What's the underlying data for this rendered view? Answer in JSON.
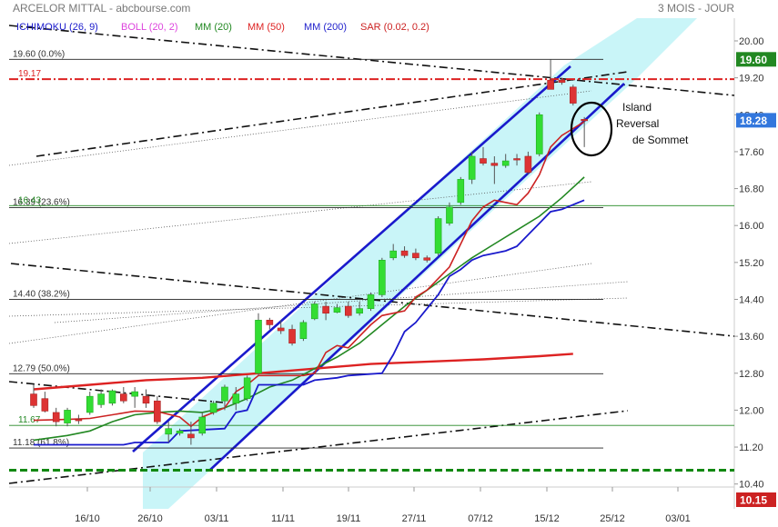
{
  "header": {
    "title": "ARCELOR MITTAL - abcbourse.com",
    "period": "3 MOIS - JOUR"
  },
  "colors": {
    "up_candle": "#33dd33",
    "down_candle": "#dd3333",
    "ichimoku": "#1a1acc",
    "bollinger": "#dd44dd",
    "ma20": "#228822",
    "ma50": "#dd2222",
    "ma200": "#2222cc",
    "sar": "#cc2222",
    "channel_fill": "#bff3f7",
    "channel_line": "#1a1acc",
    "last_price_badge": "#3377dd",
    "high_badge": "#228822",
    "low_badge": "#cc2222"
  },
  "chart_data": {
    "type": "candlestick",
    "ylim": [
      10.0,
      20.3
    ],
    "y_ticks": [
      "20.00",
      "19.20",
      "18.40",
      "17.60",
      "16.80",
      "16.00",
      "15.20",
      "14.40",
      "13.60",
      "12.80",
      "12.00",
      "11.20",
      "10.40"
    ],
    "x_ticks": [
      "16/10",
      "26/10",
      "03/11",
      "11/11",
      "19/11",
      "27/11",
      "07/12",
      "15/12",
      "25/12",
      "03/01"
    ],
    "legend": [
      {
        "label": "ICHIMOKU (26, 9)",
        "color": "#1a1acc"
      },
      {
        "label": "BOLL (20, 2)",
        "color": "#dd44dd"
      },
      {
        "label": "MM (20)",
        "color": "#228822"
      },
      {
        "label": "MM (50)",
        "color": "#dd2222"
      },
      {
        "label": "MM (200)",
        "color": "#2222cc"
      },
      {
        "label": "SAR (0.02, 0.2)",
        "color": "#cc2222"
      }
    ],
    "badges": {
      "high": "19.60",
      "last": "18.28",
      "low": "10.15"
    },
    "fib_levels": [
      {
        "label": "19.60  (0.0%)",
        "value": 19.6
      },
      {
        "label": "16.39  (23.6%)",
        "value": 16.39
      },
      {
        "label": "14.40  (38.2%)",
        "value": 14.4
      },
      {
        "label": "12.79  (50.0%)",
        "value": 12.79
      },
      {
        "label": "11.18  (61.8%)",
        "value": 11.18
      }
    ],
    "price_labels": [
      {
        "label": "19.17",
        "value": 19.17
      },
      {
        "label": "16.43",
        "value": 16.43
      },
      {
        "label": "11.67",
        "value": 11.67
      }
    ],
    "candles": [
      {
        "o": 12.35,
        "h": 12.55,
        "l": 12.05,
        "c": 12.1
      },
      {
        "o": 12.25,
        "h": 12.4,
        "l": 11.95,
        "c": 11.98
      },
      {
        "o": 11.95,
        "h": 12.05,
        "l": 11.65,
        "c": 11.75
      },
      {
        "o": 11.72,
        "h": 12.05,
        "l": 11.65,
        "c": 12.0
      },
      {
        "o": 11.8,
        "h": 11.9,
        "l": 11.7,
        "c": 11.78
      },
      {
        "o": 11.95,
        "h": 12.4,
        "l": 11.9,
        "c": 12.3
      },
      {
        "o": 12.12,
        "h": 12.45,
        "l": 12.05,
        "c": 12.35
      },
      {
        "o": 12.15,
        "h": 12.45,
        "l": 12.1,
        "c": 12.42
      },
      {
        "o": 12.35,
        "h": 12.5,
        "l": 12.15,
        "c": 12.2
      },
      {
        "o": 12.3,
        "h": 12.5,
        "l": 12.05,
        "c": 12.4
      },
      {
        "o": 12.3,
        "h": 12.45,
        "l": 12.05,
        "c": 12.15
      },
      {
        "o": 12.2,
        "h": 12.3,
        "l": 11.7,
        "c": 11.75
      },
      {
        "o": 11.48,
        "h": 11.75,
        "l": 11.3,
        "c": 11.6
      },
      {
        "o": 11.5,
        "h": 11.6,
        "l": 11.45,
        "c": 11.55
      },
      {
        "o": 11.48,
        "h": 11.75,
        "l": 11.25,
        "c": 11.4
      },
      {
        "o": 11.5,
        "h": 11.95,
        "l": 11.45,
        "c": 11.85
      },
      {
        "o": 11.95,
        "h": 12.2,
        "l": 11.9,
        "c": 12.15
      },
      {
        "o": 12.2,
        "h": 12.55,
        "l": 12.0,
        "c": 12.5
      },
      {
        "o": 12.15,
        "h": 12.5,
        "l": 12.0,
        "c": 12.35
      },
      {
        "o": 12.25,
        "h": 12.75,
        "l": 12.2,
        "c": 12.7
      },
      {
        "o": 12.8,
        "h": 14.1,
        "l": 12.75,
        "c": 13.95
      },
      {
        "o": 13.95,
        "h": 14.0,
        "l": 13.75,
        "c": 13.85
      },
      {
        "o": 13.78,
        "h": 13.95,
        "l": 13.65,
        "c": 13.72
      },
      {
        "o": 13.75,
        "h": 13.85,
        "l": 13.4,
        "c": 13.45
      },
      {
        "o": 13.55,
        "h": 13.95,
        "l": 13.5,
        "c": 13.9
      },
      {
        "o": 13.98,
        "h": 14.35,
        "l": 13.95,
        "c": 14.3
      },
      {
        "o": 14.25,
        "h": 14.35,
        "l": 13.95,
        "c": 14.1
      },
      {
        "o": 14.12,
        "h": 14.3,
        "l": 14.1,
        "c": 14.22
      },
      {
        "o": 14.25,
        "h": 14.35,
        "l": 14.0,
        "c": 14.05
      },
      {
        "o": 14.1,
        "h": 14.35,
        "l": 14.05,
        "c": 14.2
      },
      {
        "o": 14.2,
        "h": 14.55,
        "l": 14.15,
        "c": 14.5
      },
      {
        "o": 14.5,
        "h": 15.3,
        "l": 14.45,
        "c": 15.25
      },
      {
        "o": 15.3,
        "h": 15.6,
        "l": 15.25,
        "c": 15.45
      },
      {
        "o": 15.45,
        "h": 15.55,
        "l": 15.3,
        "c": 15.35
      },
      {
        "o": 15.4,
        "h": 15.5,
        "l": 15.25,
        "c": 15.3
      },
      {
        "o": 15.3,
        "h": 15.35,
        "l": 15.2,
        "c": 15.25
      },
      {
        "o": 15.4,
        "h": 16.2,
        "l": 15.35,
        "c": 16.15
      },
      {
        "o": 16.05,
        "h": 16.5,
        "l": 16.0,
        "c": 16.4
      },
      {
        "o": 16.5,
        "h": 17.05,
        "l": 16.45,
        "c": 17.0
      },
      {
        "o": 17.0,
        "h": 17.6,
        "l": 16.9,
        "c": 17.5
      },
      {
        "o": 17.45,
        "h": 17.7,
        "l": 17.3,
        "c": 17.35
      },
      {
        "o": 17.35,
        "h": 17.5,
        "l": 16.9,
        "c": 17.3
      },
      {
        "o": 17.3,
        "h": 17.55,
        "l": 17.25,
        "c": 17.4
      },
      {
        "o": 17.45,
        "h": 17.55,
        "l": 17.3,
        "c": 17.42
      },
      {
        "o": 17.5,
        "h": 17.6,
        "l": 17.1,
        "c": 17.15
      },
      {
        "o": 17.55,
        "h": 18.45,
        "l": 17.5,
        "c": 18.4
      },
      {
        "o": 19.15,
        "h": 19.6,
        "l": 18.95,
        "c": 18.95
      },
      {
        "o": 19.15,
        "h": 19.2,
        "l": 19.05,
        "c": 19.1
      },
      {
        "o": 19.0,
        "h": 19.05,
        "l": 18.6,
        "c": 18.65
      },
      {
        "o": 18.3,
        "h": 18.35,
        "l": 17.7,
        "c": 18.28
      }
    ],
    "ichimoku_line": [
      [
        0,
        11.25
      ],
      [
        8,
        11.25
      ],
      [
        9,
        11.3
      ],
      [
        12,
        11.3
      ],
      [
        13,
        11.55
      ],
      [
        17,
        11.6
      ],
      [
        18,
        11.95
      ],
      [
        19,
        12.0
      ],
      [
        20,
        12.55
      ],
      [
        24,
        12.55
      ],
      [
        25,
        12.65
      ],
      [
        27,
        12.7
      ],
      [
        28,
        12.75
      ],
      [
        31,
        12.8
      ],
      [
        32,
        13.2
      ],
      [
        33,
        13.7
      ],
      [
        34,
        13.9
      ],
      [
        35,
        14.2
      ],
      [
        36,
        14.5
      ],
      [
        37,
        14.9
      ],
      [
        38,
        15.05
      ],
      [
        39,
        15.25
      ],
      [
        40,
        15.35
      ],
      [
        41,
        15.4
      ],
      [
        42,
        15.45
      ],
      [
        43,
        15.55
      ],
      [
        44,
        15.8
      ],
      [
        45,
        16.05
      ],
      [
        46,
        16.3
      ],
      [
        47,
        16.35
      ],
      [
        48,
        16.45
      ],
      [
        49,
        16.55
      ]
    ],
    "ma20_line": [
      [
        0,
        11.35
      ],
      [
        3,
        11.45
      ],
      [
        5,
        11.55
      ],
      [
        7,
        11.75
      ],
      [
        9,
        11.9
      ],
      [
        11,
        11.95
      ],
      [
        13,
        11.98
      ],
      [
        15,
        11.95
      ],
      [
        17,
        12.05
      ],
      [
        19,
        12.25
      ],
      [
        21,
        12.5
      ],
      [
        23,
        12.65
      ],
      [
        25,
        12.9
      ],
      [
        27,
        13.15
      ],
      [
        29,
        13.45
      ],
      [
        31,
        13.85
      ],
      [
        33,
        14.25
      ],
      [
        35,
        14.6
      ],
      [
        37,
        14.95
      ],
      [
        39,
        15.3
      ],
      [
        41,
        15.6
      ],
      [
        43,
        15.9
      ],
      [
        45,
        16.2
      ],
      [
        47,
        16.6
      ],
      [
        49,
        17.05
      ]
    ],
    "ma50_line": [
      [
        0,
        12.45
      ],
      [
        5,
        12.55
      ],
      [
        10,
        12.65
      ],
      [
        15,
        12.7
      ],
      [
        20,
        12.8
      ],
      [
        25,
        12.9
      ],
      [
        30,
        13.0
      ],
      [
        35,
        13.05
      ],
      [
        40,
        13.1
      ],
      [
        45,
        13.17
      ],
      [
        48,
        13.22
      ]
    ],
    "sar_line": [
      [
        0,
        11.78
      ],
      [
        3,
        11.8
      ],
      [
        5,
        11.82
      ],
      [
        7,
        11.9
      ],
      [
        9,
        11.98
      ],
      [
        11,
        11.97
      ],
      [
        13,
        11.85
      ],
      [
        14,
        11.65
      ],
      [
        15,
        11.85
      ],
      [
        17,
        12.05
      ],
      [
        18,
        12.4
      ],
      [
        19,
        12.55
      ],
      [
        20,
        12.75
      ],
      [
        22,
        12.75
      ],
      [
        24,
        12.75
      ],
      [
        25,
        12.8
      ],
      [
        26,
        13.25
      ],
      [
        27,
        13.4
      ],
      [
        28,
        13.35
      ],
      [
        29,
        13.6
      ],
      [
        30,
        13.85
      ],
      [
        31,
        14.05
      ],
      [
        33,
        14.15
      ],
      [
        34,
        14.45
      ],
      [
        35,
        14.6
      ],
      [
        36,
        14.85
      ],
      [
        37,
        15.1
      ],
      [
        38,
        15.6
      ],
      [
        39,
        16.1
      ],
      [
        40,
        16.4
      ],
      [
        41,
        16.55
      ],
      [
        42,
        16.5
      ],
      [
        43,
        16.45
      ],
      [
        44,
        16.7
      ],
      [
        45,
        17.1
      ],
      [
        46,
        17.7
      ],
      [
        47,
        17.95
      ],
      [
        48,
        18.1
      ],
      [
        49,
        18.25
      ]
    ],
    "annotation": {
      "lines": [
        "Island",
        "Reversal",
        "de Sommet"
      ]
    }
  }
}
